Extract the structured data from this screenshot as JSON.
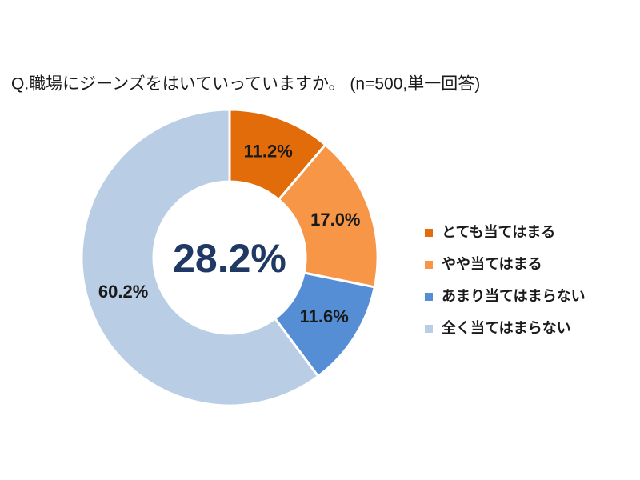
{
  "chart_data": {
    "type": "donut",
    "title": "Q.職場にジーンズをはいていっていますか。 (n=500,単一回答)",
    "categories": [
      "とても当てはまる",
      "やや当てはまる",
      "あまり当てはまらない",
      "全く当てはまらない"
    ],
    "values": [
      11.2,
      17.0,
      11.6,
      60.2
    ],
    "value_labels": [
      "11.2%",
      "17.0%",
      "11.6%",
      "60.2%"
    ],
    "colors": [
      "#e36c0a",
      "#f79646",
      "#558ed5",
      "#b9cde5"
    ],
    "center_label": "28.2%",
    "legend": "right"
  }
}
